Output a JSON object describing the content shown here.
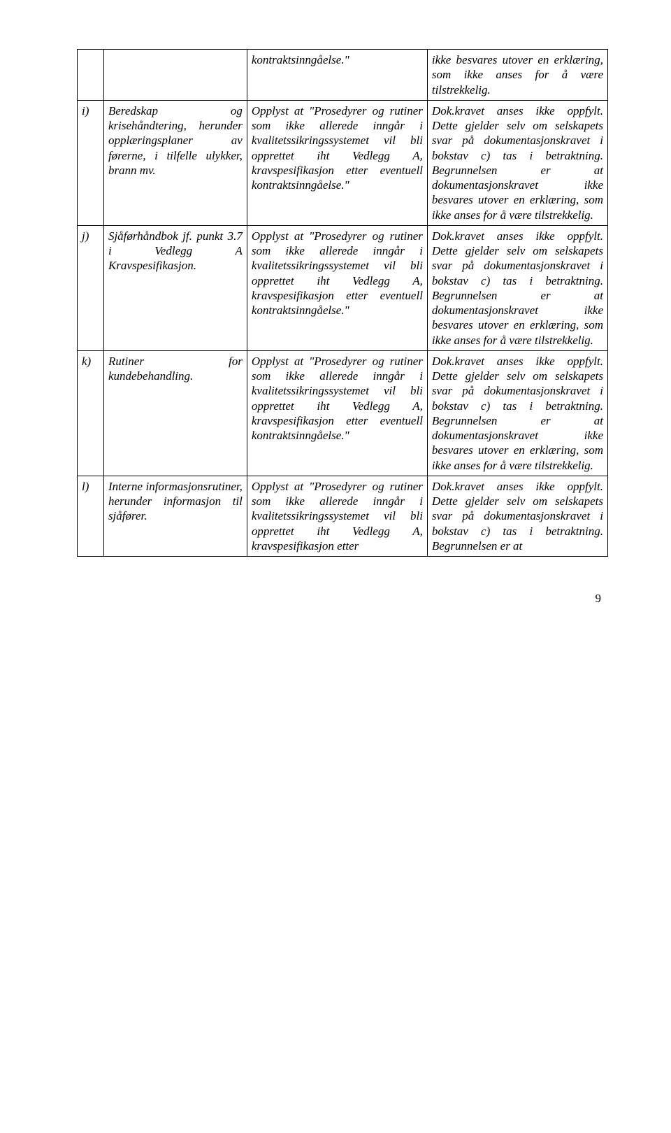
{
  "rows": [
    {
      "label": "",
      "col2": "",
      "col3": "kontraktsinngåelse.\"",
      "col4": "ikke besvares utover en erklæring, som ikke anses for å være tilstrekkelig."
    },
    {
      "label": "i)",
      "col2": "Beredskap og krisehåndtering, herunder opplæringsplaner av førerne, i tilfelle ulykker, brann mv.",
      "col3": "Opplyst at \"Prosedyrer og rutiner som ikke allerede inngår i kvalitetssikringssystemet vil bli opprettet iht Vedlegg A, kravspesifikasjon etter eventuell kontraktsinngåelse.\"",
      "col4": "Dok.kravet anses ikke oppfylt. Dette gjelder selv om selskapets svar på dokumentasjonskravet i bokstav c) tas i betraktning. Begrunnelsen er at dokumentasjonskravet ikke besvares utover en erklæring, som ikke anses for å være tilstrekkelig."
    },
    {
      "label": "j)",
      "col2": "Sjåførhåndbok jf. punkt 3.7 i Vedlegg A Kravspesifikasjon.",
      "col3": "Opplyst at \"Prosedyrer og rutiner som ikke allerede inngår i kvalitetssikringssystemet vil bli opprettet iht Vedlegg A, kravspesifikasjon etter eventuell kontraktsinngåelse.\"",
      "col4": "Dok.kravet anses ikke oppfylt. Dette gjelder selv om selskapets svar på dokumentasjonskravet i bokstav c) tas i betraktning. Begrunnelsen er at dokumentasjonskravet ikke besvares utover en erklæring, som ikke anses for å være tilstrekkelig."
    },
    {
      "label": "k)",
      "col2": "Rutiner for kundebehandling.",
      "col3": "Opplyst at \"Prosedyrer og rutiner som ikke allerede inngår i kvalitetssikringssystemet vil bli opprettet iht Vedlegg A, kravspesifikasjon etter eventuell kontraktsinngåelse.\"",
      "col4": "Dok.kravet anses ikke oppfylt. Dette gjelder selv om selskapets svar på dokumentasjonskravet i bokstav c) tas i betraktning. Begrunnelsen er at dokumentasjonskravet ikke besvares utover en erklæring, som ikke anses for å være tilstrekkelig."
    },
    {
      "label": "l)",
      "col2": "Interne informasjonsrutiner, herunder informasjon til sjåfører.",
      "col3": "Opplyst at \"Prosedyrer og rutiner som ikke allerede inngår i kvalitetssikringssystemet vil bli opprettet iht Vedlegg A, kravspesifikasjon etter",
      "col4": "Dok.kravet anses ikke oppfylt. Dette gjelder selv om selskapets svar på dokumentasjonskravet i bokstav c) tas i betraktning. Begrunnelsen er at"
    }
  ],
  "pageNumber": "9"
}
